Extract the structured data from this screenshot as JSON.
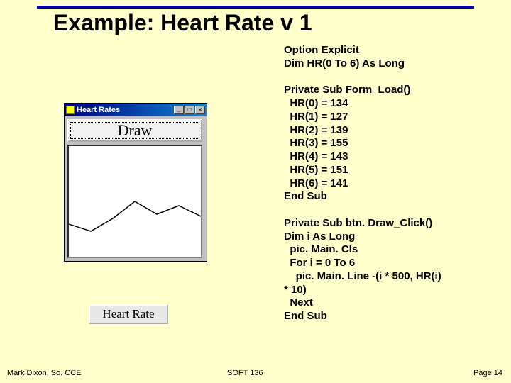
{
  "title": "Example: Heart Rate v 1",
  "code_text": "Option Explicit\nDim HR(0 To 6) As Long\n\nPrivate Sub Form_Load()\n  HR(0) = 134\n  HR(1) = 127\n  HR(2) = 139\n  HR(3) = 155\n  HR(4) = 143\n  HR(5) = 151\n  HR(6) = 141\nEnd Sub\n\nPrivate Sub btn. Draw_Click()\nDim i As Long\n  pic. Main. Cls\n  For i = 0 To 6\n    pic. Main. Line -(i * 500, HR(i)\n* 10)\n  Next\nEnd Sub",
  "window": {
    "caption": "Heart Rates",
    "draw_button": "Draw",
    "min_glyph": "_",
    "max_glyph": "□",
    "close_glyph": "×"
  },
  "hr_button": "Heart Rate",
  "chart": {
    "line_color": "#000000",
    "line_width": 1.5,
    "points": [
      [
        0,
        110
      ],
      [
        31,
        120
      ],
      [
        62,
        102
      ],
      [
        93,
        78
      ],
      [
        124,
        96
      ],
      [
        155,
        84
      ],
      [
        186,
        99
      ]
    ]
  },
  "footer": {
    "left": "Mark Dixon, So. CCE",
    "center": "SOFT 136",
    "right": "Page 14"
  },
  "colors": {
    "background": "#ffffcc",
    "title_rule": "#000099"
  }
}
